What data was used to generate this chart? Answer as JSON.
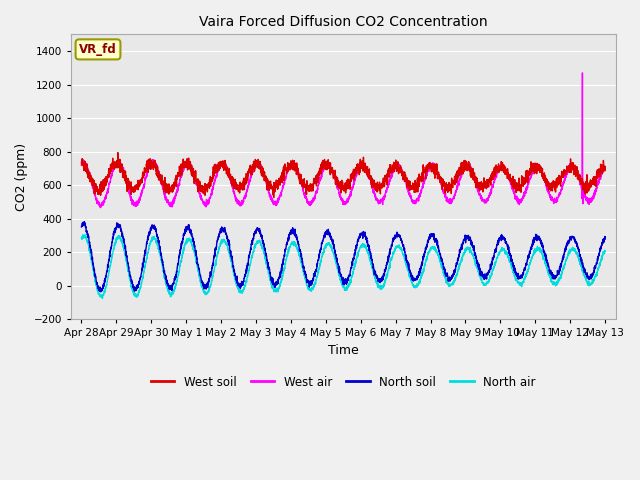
{
  "title": "Vaira Forced Diffusion CO2 Concentration",
  "xlabel": "Time",
  "ylabel": "CO2 (ppm)",
  "ylim": [
    -200,
    1500
  ],
  "yticks": [
    -200,
    0,
    200,
    400,
    600,
    800,
    1000,
    1200,
    1400
  ],
  "x_tick_labels": [
    "Apr 28",
    "Apr 29",
    "Apr 30",
    "May 1",
    "May 2",
    "May 3",
    "May 4",
    "May 5",
    "May 6",
    "May 7",
    "May 8",
    "May 9",
    "May 10",
    "May 11",
    "May 12",
    "May 13"
  ],
  "legend_label": "VR_fd",
  "series_colors": {
    "west_soil": "#dd0000",
    "west_air": "#ff00ff",
    "north_soil": "#0000cc",
    "north_air": "#00dddd"
  },
  "legend_entries": [
    "West soil",
    "West air",
    "North soil",
    "North air"
  ],
  "legend_colors": [
    "#dd0000",
    "#ff00ff",
    "#0000cc",
    "#00dddd"
  ],
  "bg_color": "#e8e8e8",
  "plot_bg_color": "#f0f0f0",
  "grid_color": "#ffffff",
  "spike_day": 14.35,
  "spike_value": 1270
}
